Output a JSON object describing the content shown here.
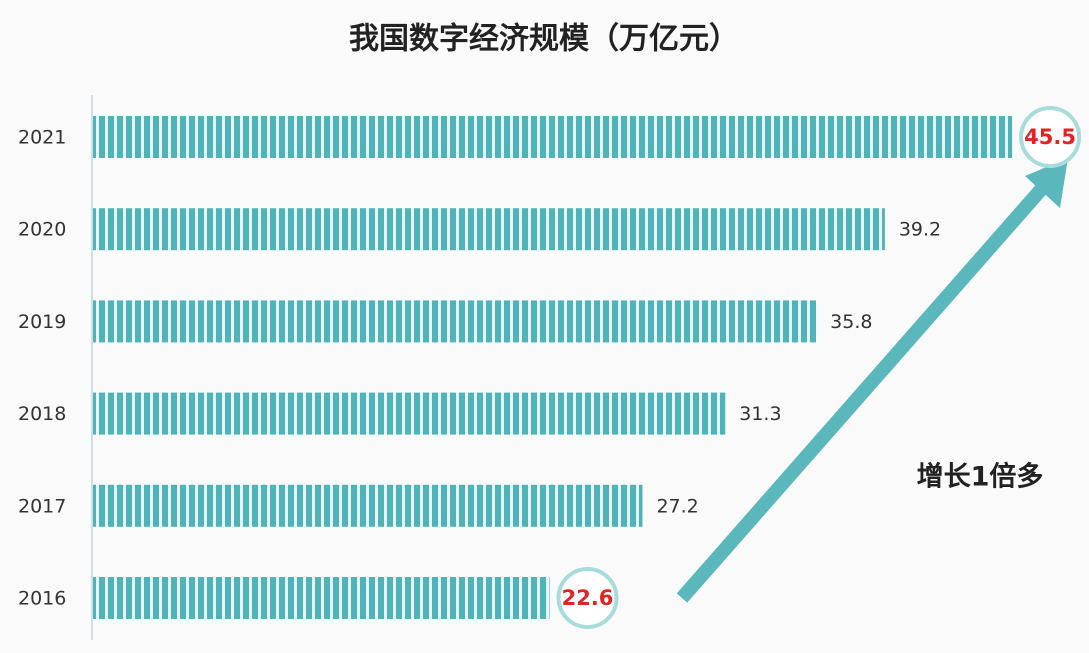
{
  "chart_data": {
    "type": "bar",
    "orientation": "horizontal",
    "title": "我国数字经济规模（万亿元）",
    "annotation": "增长1倍多",
    "categories": [
      "2021",
      "2020",
      "2019",
      "2018",
      "2017",
      "2016"
    ],
    "values": [
      45.5,
      39.2,
      35.8,
      31.3,
      27.2,
      22.6
    ],
    "color": "#4fb3b8",
    "highlight_indices": [
      0,
      5
    ],
    "highlight_color": "#e02424",
    "xlim": [
      0,
      50
    ]
  }
}
